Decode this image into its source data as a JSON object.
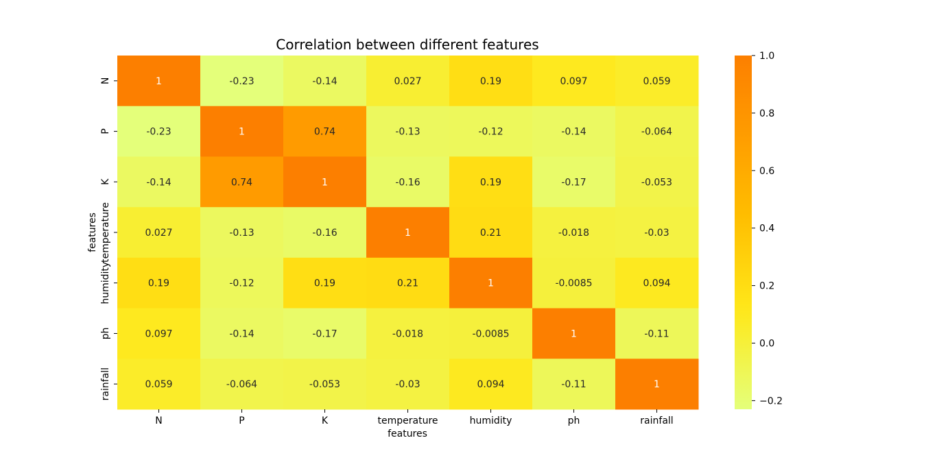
{
  "chart_data": {
    "type": "heatmap",
    "title": "Correlation between different features",
    "xlabel": "features",
    "ylabel": "features",
    "x_categories": [
      "N",
      "P",
      "K",
      "temperature",
      "humidity",
      "ph",
      "rainfall"
    ],
    "y_categories": [
      "N",
      "P",
      "K",
      "temperature",
      "humidity",
      "ph",
      "rainfall"
    ],
    "values": [
      [
        1,
        -0.23,
        -0.14,
        0.027,
        0.19,
        0.097,
        0.059
      ],
      [
        -0.23,
        1,
        0.74,
        -0.13,
        -0.12,
        -0.14,
        -0.064
      ],
      [
        -0.14,
        0.74,
        1,
        -0.16,
        0.19,
        -0.17,
        -0.053
      ],
      [
        0.027,
        -0.13,
        -0.16,
        1,
        0.21,
        -0.018,
        -0.03
      ],
      [
        0.19,
        -0.12,
        0.19,
        0.21,
        1,
        -0.0085,
        0.094
      ],
      [
        0.097,
        -0.14,
        -0.17,
        -0.018,
        -0.0085,
        1,
        -0.11
      ],
      [
        0.059,
        -0.064,
        -0.053,
        -0.03,
        0.094,
        -0.11,
        1
      ]
    ],
    "cell_labels": [
      [
        "1",
        "-0.23",
        "-0.14",
        "0.027",
        "0.19",
        "0.097",
        "0.059"
      ],
      [
        "-0.23",
        "1",
        "0.74",
        "-0.13",
        "-0.12",
        "-0.14",
        "-0.064"
      ],
      [
        "-0.14",
        "0.74",
        "1",
        "-0.16",
        "0.19",
        "-0.17",
        "-0.053"
      ],
      [
        "0.027",
        "-0.13",
        "-0.16",
        "1",
        "0.21",
        "-0.018",
        "-0.03"
      ],
      [
        "0.19",
        "-0.12",
        "0.19",
        "0.21",
        "1",
        "-0.0085",
        "0.094"
      ],
      [
        "0.097",
        "-0.14",
        "-0.17",
        "-0.018",
        "-0.0085",
        "1",
        "-0.11"
      ],
      [
        "0.059",
        "-0.064",
        "-0.053",
        "-0.03",
        "0.094",
        "-0.11",
        "1"
      ]
    ],
    "colormap": "Wistia",
    "vmin": -0.23,
    "vmax": 1.0,
    "colorbar_ticks": [
      1.0,
      0.8,
      0.6,
      0.4,
      0.2,
      0.0,
      -0.2
    ],
    "colorbar_tick_labels": [
      "1.0",
      "0.8",
      "0.6",
      "0.4",
      "0.2",
      "0.0",
      "−0.2"
    ],
    "colors": {
      "low": "#e4ff7a",
      "mid1": "#ffe81a",
      "mid2": "#ffbd00",
      "mid3": "#ffa000",
      "high": "#fc7f00"
    }
  }
}
